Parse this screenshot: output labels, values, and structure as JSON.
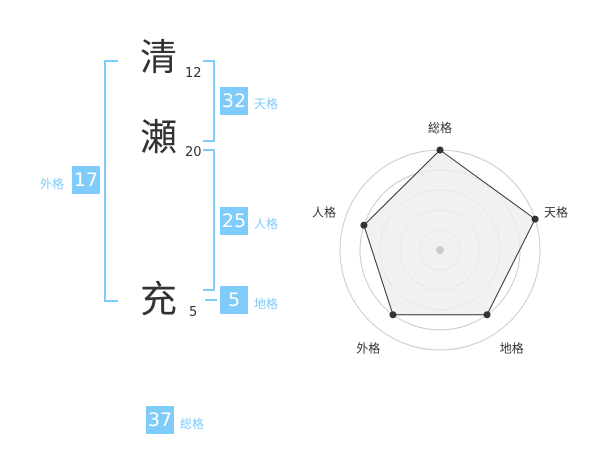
{
  "name": [
    {
      "char": "清",
      "strokes": "12"
    },
    {
      "char": "瀬",
      "strokes": "20"
    },
    {
      "char": "充",
      "strokes": "5"
    }
  ],
  "fortunes": {
    "tenkaku": {
      "label": "天格",
      "value": "32"
    },
    "jinkaku": {
      "label": "人格",
      "value": "25"
    },
    "chikaku": {
      "label": "地格",
      "value": "5"
    },
    "gaikaku": {
      "label": "外格",
      "value": "17"
    },
    "soukaku": {
      "label": "総格",
      "value": "37"
    }
  },
  "chart_data": {
    "type": "radar",
    "axes": [
      "総格",
      "天格",
      "地格",
      "外格",
      "人格"
    ],
    "values": [
      5,
      5,
      4,
      4,
      4
    ],
    "max": 5,
    "rings": 5,
    "colors": {
      "fill": "#eeeeee",
      "line": "#333333",
      "grid": "#cccccc",
      "accent": "#7fcbf9"
    }
  }
}
